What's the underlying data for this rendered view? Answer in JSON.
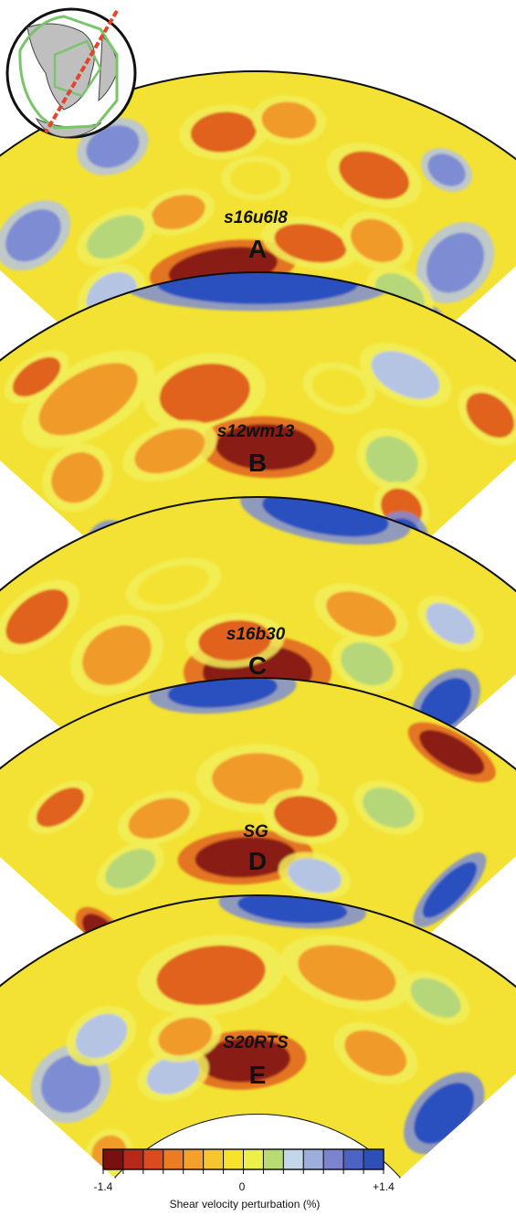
{
  "inset_map": {
    "description_icon": "globe-icon"
  },
  "panels": [
    {
      "model": "s16u6l8",
      "letter": "A"
    },
    {
      "model": "s12wm13",
      "letter": "B"
    },
    {
      "model": "s16b30",
      "letter": "C"
    },
    {
      "model": "SG",
      "letter": "D"
    },
    {
      "model": "S20RTS",
      "letter": "E"
    }
  ],
  "colorbar": {
    "min_label": "-1.4",
    "mid_label": "0",
    "max_label": "+1.4",
    "caption": "Shear velocity perturbation (%)",
    "colors": [
      "#7a0f0f",
      "#b8281a",
      "#dd4a1f",
      "#ee7a22",
      "#f5a02a",
      "#f7c52c",
      "#f7e22c",
      "#eef04a",
      "#b9dc72",
      "#c3d7e8",
      "#9eaedc",
      "#7c84cf",
      "#4d62c4",
      "#2e4fb8"
    ]
  },
  "palette": {
    "yellow": "#f3e233",
    "light_yellow": "#f1ee5a",
    "green": "#b5d77a",
    "orange": "#f09a2c",
    "red_orange": "#e0621f",
    "dark_red": "#8a1a12",
    "light_blue": "#b6c4e3",
    "mid_blue": "#7e8dd3",
    "deep_blue": "#2a4fbf"
  }
}
